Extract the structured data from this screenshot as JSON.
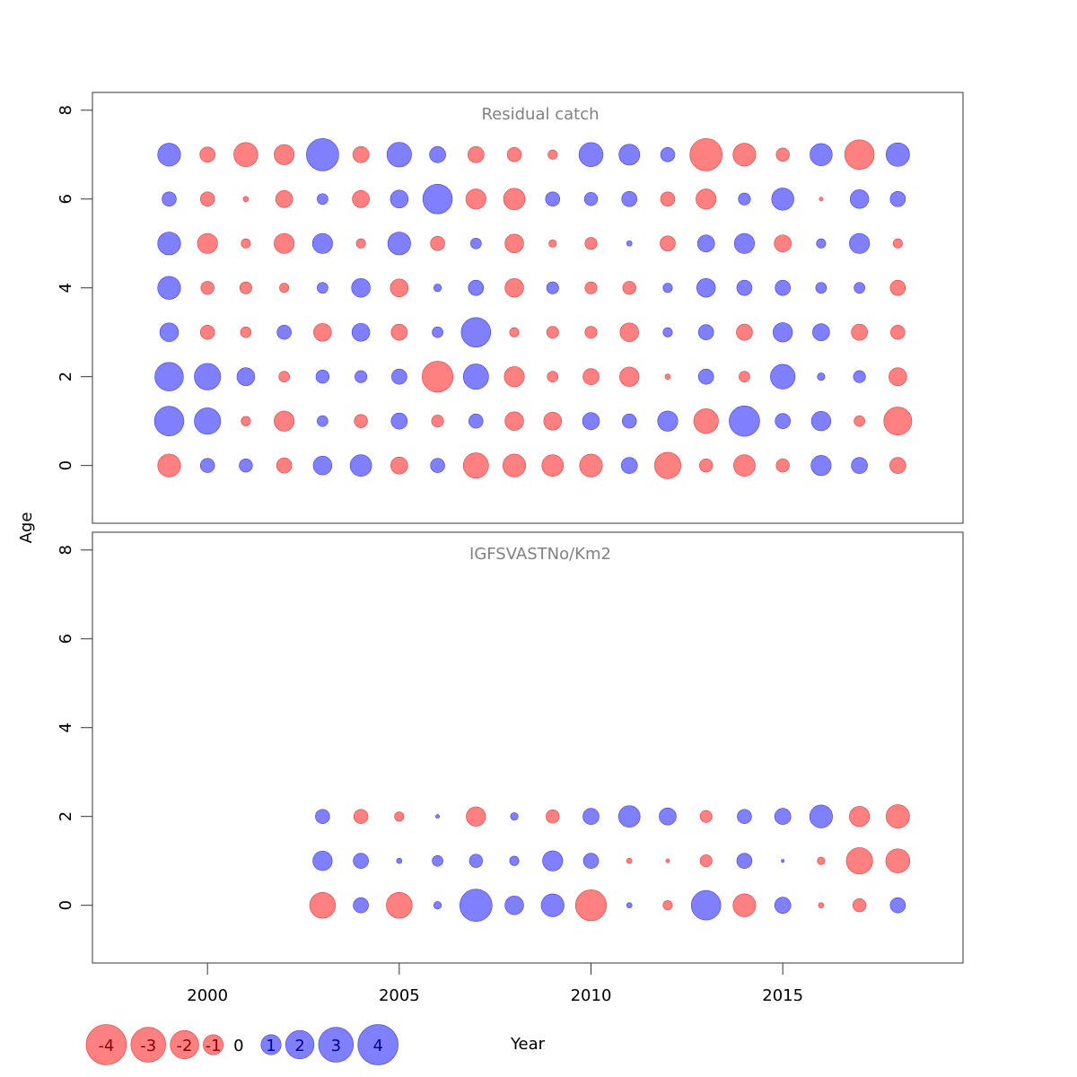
{
  "chart_data": {
    "type": "scatter",
    "subtype": "bubble-residuals",
    "colors": {
      "positive": "#8080ff",
      "negative": "#ff8080",
      "positive_edge": "#4040e0",
      "negative_edge": "#e04040"
    },
    "xlabel": "Year",
    "ylabel": "Age",
    "xlim": [
      1997,
      2019.7
    ],
    "x_ticks": [
      2000,
      2005,
      2010,
      2015
    ],
    "x_tick_labels": [
      "2000",
      "2005",
      "2010",
      "2015"
    ],
    "panels": [
      {
        "title": "Residual catch",
        "ylim": [
          -1.3,
          8.4
        ],
        "y_ticks": [
          0,
          2,
          4,
          6,
          8
        ],
        "y_tick_labels": [
          "0",
          "2",
          "4",
          "6",
          "8"
        ],
        "ages": [
          0,
          1,
          2,
          3,
          4,
          5,
          6,
          7
        ],
        "years": [
          1999,
          2000,
          2001,
          2002,
          2003,
          2004,
          2005,
          2006,
          2007,
          2008,
          2009,
          2010,
          2011,
          2012,
          2013,
          2014,
          2015,
          2016,
          2017,
          2018
        ],
        "residuals": [
          [
            -1.8,
            0.7,
            0.6,
            -0.8,
            1.2,
            1.6,
            -1.0,
            0.7,
            -2.2,
            -1.8,
            -1.6,
            -1.8,
            0.9,
            -2.4,
            -0.6,
            -1.6,
            -0.6,
            1.4,
            0.9,
            -0.9
          ],
          [
            3.0,
            2.4,
            -0.3,
            -1.4,
            0.4,
            -0.6,
            0.9,
            -0.5,
            0.7,
            -1.2,
            -1.1,
            1.0,
            0.7,
            1.4,
            -2.1,
            3.2,
            0.8,
            1.3,
            -0.4,
            -2.7
          ],
          [
            2.8,
            2.4,
            1.1,
            -0.4,
            0.6,
            0.5,
            0.8,
            -3.3,
            2.2,
            -1.4,
            -0.4,
            -0.9,
            -1.3,
            -0.1,
            0.8,
            -0.4,
            2.1,
            0.2,
            0.5,
            -1.1
          ],
          [
            1.2,
            -0.7,
            -0.4,
            0.7,
            -1.1,
            1.1,
            -0.9,
            0.4,
            3.0,
            -0.3,
            -0.5,
            -0.5,
            -1.2,
            0.3,
            0.8,
            -0.9,
            1.3,
            1.0,
            -0.9,
            -0.7
          ],
          [
            1.8,
            -0.6,
            -0.5,
            -0.3,
            0.4,
            1.2,
            -1.1,
            0.2,
            0.8,
            -1.2,
            0.5,
            -0.5,
            -0.6,
            0.3,
            1.2,
            0.8,
            0.8,
            0.4,
            0.4,
            -0.8
          ],
          [
            1.8,
            -1.4,
            -0.3,
            -1.4,
            1.4,
            -0.3,
            1.8,
            -0.7,
            0.4,
            -1.2,
            -0.2,
            -0.5,
            0.1,
            -0.8,
            1.0,
            1.4,
            -1.0,
            0.3,
            1.4,
            -0.3
          ],
          [
            0.7,
            -0.7,
            -0.1,
            -1.0,
            0.4,
            -1.0,
            1.1,
            3.0,
            -1.4,
            -1.6,
            0.7,
            0.6,
            0.8,
            -0.7,
            -1.4,
            0.5,
            1.7,
            -0.05,
            1.2,
            0.8
          ],
          [
            1.8,
            -0.8,
            -2.0,
            -1.4,
            3.6,
            -0.9,
            2.1,
            0.9,
            -0.9,
            -0.7,
            -0.3,
            2.0,
            1.5,
            0.7,
            -3.6,
            -1.8,
            -0.6,
            1.7,
            -3.0,
            1.9
          ]
        ]
      },
      {
        "title": "IGFSVASTNo/Km2",
        "ylim": [
          -1.3,
          8.4
        ],
        "y_ticks": [
          0,
          2,
          4,
          6,
          8
        ],
        "y_tick_labels": [
          "0",
          "2",
          "4",
          "6",
          "8"
        ],
        "ages": [
          0,
          1,
          2
        ],
        "years": [
          2003,
          2004,
          2005,
          2006,
          2007,
          2008,
          2009,
          2010,
          2011,
          2012,
          2013,
          2014,
          2015,
          2016,
          2017,
          2018
        ],
        "residuals": [
          [
            -2.3,
            0.8,
            -2.3,
            0.2,
            3.6,
            1.2,
            1.8,
            -3.3,
            0.1,
            -0.3,
            3.0,
            -1.8,
            0.9,
            -0.1,
            -0.6,
            0.8
          ],
          [
            1.3,
            0.8,
            0.1,
            0.4,
            0.6,
            0.3,
            1.4,
            0.8,
            -0.1,
            -0.05,
            -0.5,
            0.8,
            0.03,
            -0.2,
            -2.4,
            -2.0
          ],
          [
            0.7,
            -0.7,
            -0.3,
            0.05,
            -1.3,
            0.2,
            -0.6,
            0.9,
            1.6,
            1.0,
            -0.5,
            0.7,
            0.9,
            1.8,
            -1.4,
            -1.9
          ]
        ]
      }
    ],
    "legend": {
      "placement": "bottom-left",
      "entries": [
        {
          "label": "-4",
          "value": -4
        },
        {
          "label": "-3",
          "value": -3
        },
        {
          "label": "-2",
          "value": -2
        },
        {
          "label": "-1",
          "value": -1
        },
        {
          "label": "0",
          "value": 0
        },
        {
          "label": "1",
          "value": 1
        },
        {
          "label": "2",
          "value": 2
        },
        {
          "label": "3",
          "value": 3
        },
        {
          "label": "4",
          "value": 4
        }
      ]
    }
  }
}
